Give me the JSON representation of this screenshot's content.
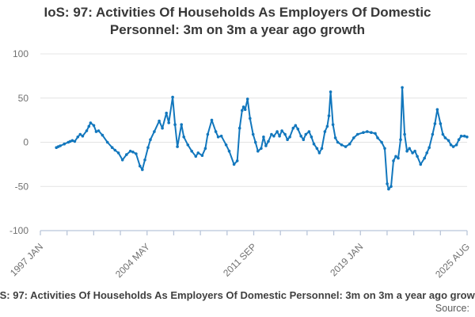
{
  "title": {
    "text": "IoS: 97: Activities Of Households As Employers Of Domestic Personnel: 3m on 3m a year ago growth"
  },
  "footer": {
    "source_label": "Source:"
  },
  "chart_data": {
    "type": "line",
    "title": "IoS: 97: Activities Of Households As Employers Of Domestic Personnel: 3m on 3m a year ago growth",
    "x_unit": "decimal_year",
    "xlim": [
      1997.0,
      2025.583
    ],
    "ylim": [
      -100,
      100
    ],
    "y_ticks": [
      100,
      50,
      0,
      -50,
      -100
    ],
    "x_tick_count": 17,
    "x_tick_labels": [
      {
        "index": 0,
        "label": "1997 JAN"
      },
      {
        "index": 4,
        "label": "2004 MAY"
      },
      {
        "index": 8,
        "label": "2011 SEP"
      },
      {
        "index": 12,
        "label": "2019 JAN"
      },
      {
        "index": 16,
        "label": "2025 AUG"
      }
    ],
    "grid": true,
    "legend": "none",
    "colors": {
      "line": "#1277bd",
      "grid": "#e4e4e4",
      "axis": "#b9c5d9",
      "tick_label": "#707070"
    },
    "points": [
      [
        1998.07,
        -6
      ],
      [
        1998.2,
        -5
      ],
      [
        1998.33,
        -4
      ],
      [
        1998.6,
        -2
      ],
      [
        1998.87,
        0
      ],
      [
        1999.0,
        1
      ],
      [
        1999.14,
        2
      ],
      [
        1999.3,
        1
      ],
      [
        1999.51,
        6
      ],
      [
        1999.67,
        9
      ],
      [
        1999.83,
        7
      ],
      [
        2000.1,
        13
      ],
      [
        2000.25,
        18
      ],
      [
        2000.36,
        22
      ],
      [
        2000.58,
        19
      ],
      [
        2000.74,
        12
      ],
      [
        2000.9,
        13
      ],
      [
        2001.16,
        8
      ],
      [
        2001.49,
        0
      ],
      [
        2001.81,
        -6
      ],
      [
        2002.0,
        -9
      ],
      [
        2002.23,
        -12
      ],
      [
        2002.5,
        -20
      ],
      [
        2002.77,
        -14
      ],
      [
        2003.03,
        -10
      ],
      [
        2003.2,
        -11
      ],
      [
        2003.41,
        -13
      ],
      [
        2003.67,
        -27
      ],
      [
        2003.83,
        -31
      ],
      [
        2004.0,
        -20
      ],
      [
        2004.21,
        -6
      ],
      [
        2004.37,
        3
      ],
      [
        2004.63,
        12
      ],
      [
        2004.96,
        24
      ],
      [
        2005.17,
        16
      ],
      [
        2005.44,
        33
      ],
      [
        2005.6,
        22
      ],
      [
        2005.86,
        51
      ],
      [
        2006.02,
        20
      ],
      [
        2006.18,
        -5
      ],
      [
        2006.45,
        20
      ],
      [
        2006.61,
        6
      ],
      [
        2006.88,
        -3
      ],
      [
        2007.14,
        -10
      ],
      [
        2007.41,
        -16
      ],
      [
        2007.57,
        -12
      ],
      [
        2007.84,
        -15
      ],
      [
        2008.05,
        -7
      ],
      [
        2008.21,
        9
      ],
      [
        2008.48,
        25
      ],
      [
        2008.75,
        12
      ],
      [
        2008.91,
        6
      ],
      [
        2009.12,
        7
      ],
      [
        2009.44,
        -3
      ],
      [
        2009.65,
        -10
      ],
      [
        2009.97,
        -25
      ],
      [
        2010.19,
        -21
      ],
      [
        2010.35,
        16
      ],
      [
        2010.51,
        36
      ],
      [
        2010.61,
        40
      ],
      [
        2010.72,
        37
      ],
      [
        2010.88,
        49
      ],
      [
        2011.04,
        27
      ],
      [
        2011.25,
        9
      ],
      [
        2011.41,
        0
      ],
      [
        2011.57,
        -10
      ],
      [
        2011.79,
        -7
      ],
      [
        2011.95,
        6
      ],
      [
        2012.11,
        -4
      ],
      [
        2012.27,
        1
      ],
      [
        2012.48,
        9
      ],
      [
        2012.64,
        7
      ],
      [
        2012.86,
        12
      ],
      [
        2013.02,
        7
      ],
      [
        2013.18,
        13
      ],
      [
        2013.39,
        9
      ],
      [
        2013.55,
        3
      ],
      [
        2013.71,
        6
      ],
      [
        2013.93,
        16
      ],
      [
        2014.09,
        19
      ],
      [
        2014.25,
        15
      ],
      [
        2014.46,
        7
      ],
      [
        2014.62,
        3
      ],
      [
        2014.78,
        9
      ],
      [
        2015.0,
        12
      ],
      [
        2015.16,
        6
      ],
      [
        2015.32,
        -2
      ],
      [
        2015.53,
        -7
      ],
      [
        2015.69,
        -12
      ],
      [
        2015.85,
        -7
      ],
      [
        2016.06,
        12
      ],
      [
        2016.22,
        18
      ],
      [
        2016.33,
        30
      ],
      [
        2016.44,
        57
      ],
      [
        2016.6,
        20
      ],
      [
        2016.76,
        5
      ],
      [
        2016.92,
        0
      ],
      [
        2017.18,
        -3
      ],
      [
        2017.45,
        -5
      ],
      [
        2017.72,
        -2
      ],
      [
        2017.99,
        5
      ],
      [
        2018.25,
        9
      ],
      [
        2018.63,
        11
      ],
      [
        2018.89,
        12
      ],
      [
        2019.16,
        11
      ],
      [
        2019.43,
        10
      ],
      [
        2019.59,
        5
      ],
      [
        2019.86,
        0
      ],
      [
        2020.07,
        -7
      ],
      [
        2020.23,
        -47
      ],
      [
        2020.33,
        -53
      ],
      [
        2020.49,
        -50
      ],
      [
        2020.65,
        -21
      ],
      [
        2020.81,
        -16
      ],
      [
        2020.97,
        -18
      ],
      [
        2021.13,
        3
      ],
      [
        2021.24,
        62
      ],
      [
        2021.4,
        9
      ],
      [
        2021.56,
        -10
      ],
      [
        2021.72,
        -7
      ],
      [
        2021.93,
        -12
      ],
      [
        2022.09,
        -10
      ],
      [
        2022.25,
        -16
      ],
      [
        2022.47,
        -25
      ],
      [
        2022.73,
        -18
      ],
      [
        2022.89,
        -12
      ],
      [
        2023.05,
        -6
      ],
      [
        2023.27,
        9
      ],
      [
        2023.43,
        21
      ],
      [
        2023.59,
        37
      ],
      [
        2023.8,
        21
      ],
      [
        2023.96,
        9
      ],
      [
        2024.12,
        5
      ],
      [
        2024.34,
        2
      ],
      [
        2024.5,
        -3
      ],
      [
        2024.66,
        -5
      ],
      [
        2024.87,
        -3
      ],
      [
        2025.03,
        3
      ],
      [
        2025.19,
        7
      ],
      [
        2025.41,
        7
      ],
      [
        2025.58,
        6
      ]
    ]
  }
}
